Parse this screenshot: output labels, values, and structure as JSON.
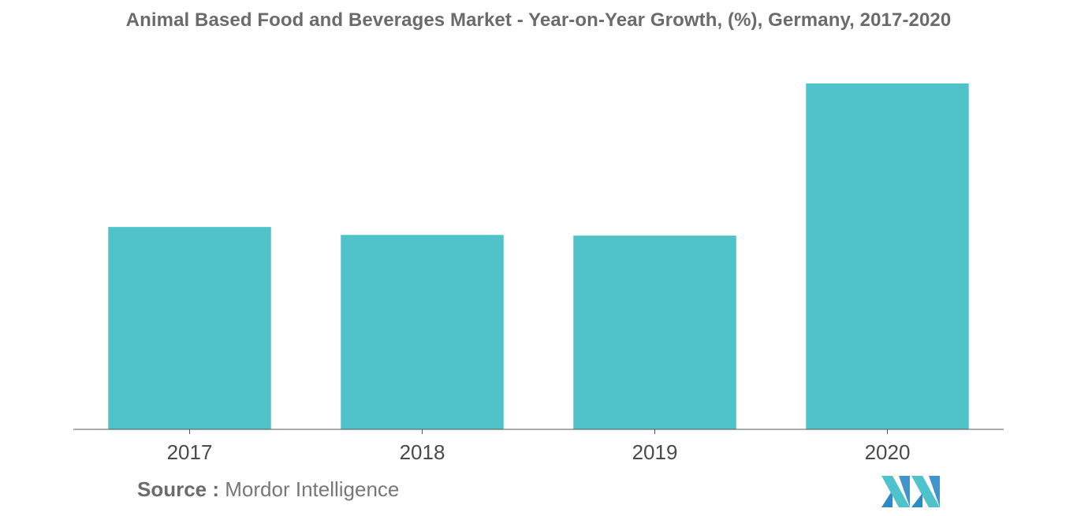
{
  "title": "Animal Based Food and Beverages Market - Year-on-Year Growth, (%), Germany, 2017-2020",
  "source": {
    "label": "Source :",
    "text": "Mordor Intelligence"
  },
  "logo": {
    "icon": "mordor-intelligence-logo",
    "colors": [
      "#2c8ac6",
      "#4fc3cb"
    ]
  },
  "colors": {
    "bar": "#4fc3c9",
    "axis": "#555555",
    "tick_text": "#4a4a4a"
  },
  "chart_data": {
    "type": "bar",
    "title": "Animal Based Food and Beverages Market - Year-on-Year Growth, (%), Germany, 2017-2020",
    "categories": [
      "2017",
      "2018",
      "2019",
      "2020"
    ],
    "values": [
      5.85,
      5.62,
      5.6,
      10.0
    ],
    "xlabel": "",
    "ylabel": "",
    "ylim": [
      0,
      11
    ],
    "grid": false,
    "legend": "none",
    "value_axis_shown": false
  }
}
